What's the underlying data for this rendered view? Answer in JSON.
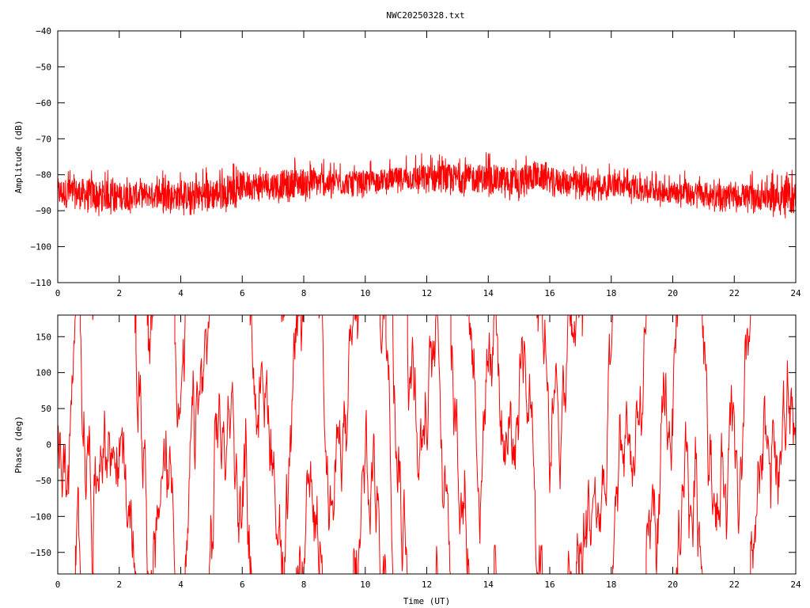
{
  "title": "NWC20250328.txt",
  "trace_color": "#ff0000",
  "chart_data": [
    {
      "type": "line",
      "name": "amplitude",
      "ylabel": "Amplitude (dB)",
      "xlabel": "",
      "xlim": [
        0,
        24
      ],
      "ylim": [
        -110,
        -40
      ],
      "xticks": [
        0,
        2,
        4,
        6,
        8,
        10,
        12,
        14,
        16,
        18,
        20,
        22,
        24
      ],
      "yticks": [
        -110,
        -100,
        -90,
        -80,
        -70,
        -60,
        -50,
        -40
      ],
      "grid": false,
      "envelope_x": [
        0,
        1,
        2,
        3,
        4,
        5,
        5.5,
        6,
        7,
        8,
        9,
        10,
        11,
        12,
        13,
        14,
        15,
        15.5,
        16,
        17,
        18,
        19,
        20,
        21,
        22,
        23,
        24
      ],
      "envelope_upper": [
        -81,
        -81,
        -82,
        -82,
        -82,
        -81,
        -80,
        -79,
        -79,
        -78,
        -79,
        -79,
        -78,
        -77,
        -77,
        -77,
        -78,
        -76,
        -78,
        -79,
        -80,
        -81,
        -82,
        -82,
        -83,
        -82,
        -82
      ],
      "envelope_lower": [
        -89,
        -90,
        -90,
        -89,
        -90,
        -90,
        -89,
        -87,
        -87,
        -86,
        -86,
        -85,
        -84,
        -85,
        -85,
        -85,
        -86,
        -84,
        -85,
        -86,
        -86,
        -87,
        -88,
        -89,
        -89,
        -90,
        -91
      ]
    },
    {
      "type": "line",
      "name": "phase",
      "ylabel": "Phase (deg)",
      "xlabel": "Time (UT)",
      "xlim": [
        0,
        24
      ],
      "ylim": [
        -180,
        180
      ],
      "xticks": [
        0,
        2,
        4,
        6,
        8,
        10,
        12,
        14,
        16,
        18,
        20,
        22,
        24
      ],
      "yticks": [
        -150,
        -100,
        -50,
        0,
        50,
        100,
        150
      ],
      "grid": false,
      "note_values": "phase wraps between -180 and 180 deg throughout 0-24 UT"
    }
  ]
}
